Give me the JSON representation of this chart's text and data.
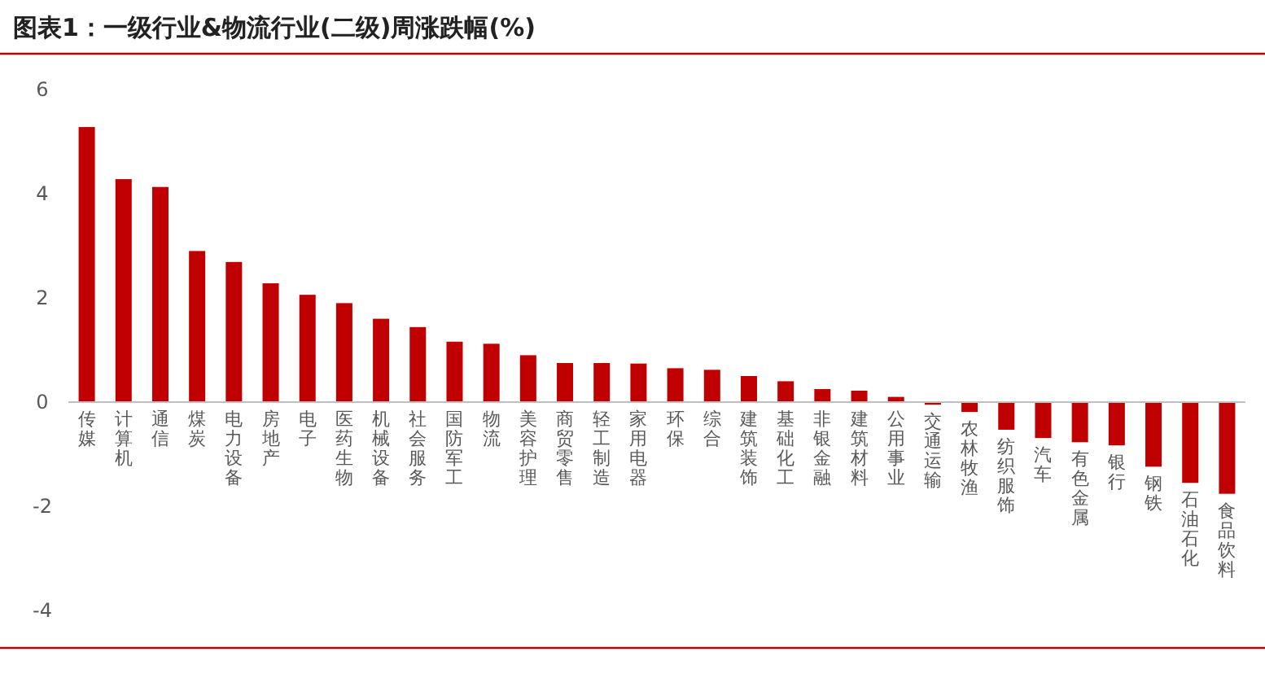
{
  "chart_data": {
    "type": "bar",
    "title": "图表1：一级行业&物流行业(二级)周涨跌幅(%)",
    "categories": [
      "传媒",
      "计算机",
      "通信",
      "煤炭",
      "电力设备",
      "房地产",
      "电子",
      "医药生物",
      "机械设备",
      "社会服务",
      "国防军工",
      "物流",
      "美容护理",
      "商贸零售",
      "轻工制造",
      "家用电器",
      "环保",
      "综合",
      "建筑装饰",
      "基础化工",
      "非银金融",
      "建筑材料",
      "公用事业",
      "交通运输",
      "农林牧渔",
      "纺织服饰",
      "汽车",
      "有色金属",
      "银行",
      "钢铁",
      "石油石化",
      "食品饮料"
    ],
    "values": [
      5.28,
      4.28,
      4.13,
      2.9,
      2.69,
      2.28,
      2.06,
      1.9,
      1.6,
      1.44,
      1.16,
      1.12,
      0.9,
      0.75,
      0.75,
      0.74,
      0.65,
      0.62,
      0.5,
      0.4,
      0.25,
      0.22,
      0.1,
      -0.05,
      -0.19,
      -0.53,
      -0.69,
      -0.77,
      -0.83,
      -1.24,
      -1.55,
      -1.76
    ],
    "color": "#c00000",
    "ylim": [
      -4,
      6
    ],
    "yticks": [
      -4,
      -2,
      0,
      2,
      4,
      6
    ]
  }
}
